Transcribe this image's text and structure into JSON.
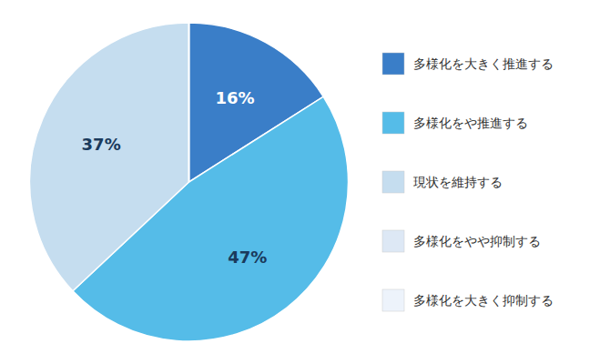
{
  "chart_data": {
    "type": "pie",
    "categories": [
      "多様化を大きく推進する",
      "多様化をや推進する",
      "現状を維持する",
      "多様化をやや抑制する",
      "多様化を大きく抑制する"
    ],
    "values": [
      16,
      47,
      37,
      0.001,
      0.001
    ],
    "value_labels": [
      "16%",
      "47%",
      "37%",
      null,
      null
    ],
    "colors": [
      "#3a7ec8",
      "#55bce8",
      "#c5ddef",
      "#dde8f5",
      "#edf3fb"
    ],
    "data_labels": true,
    "legend": "right"
  }
}
